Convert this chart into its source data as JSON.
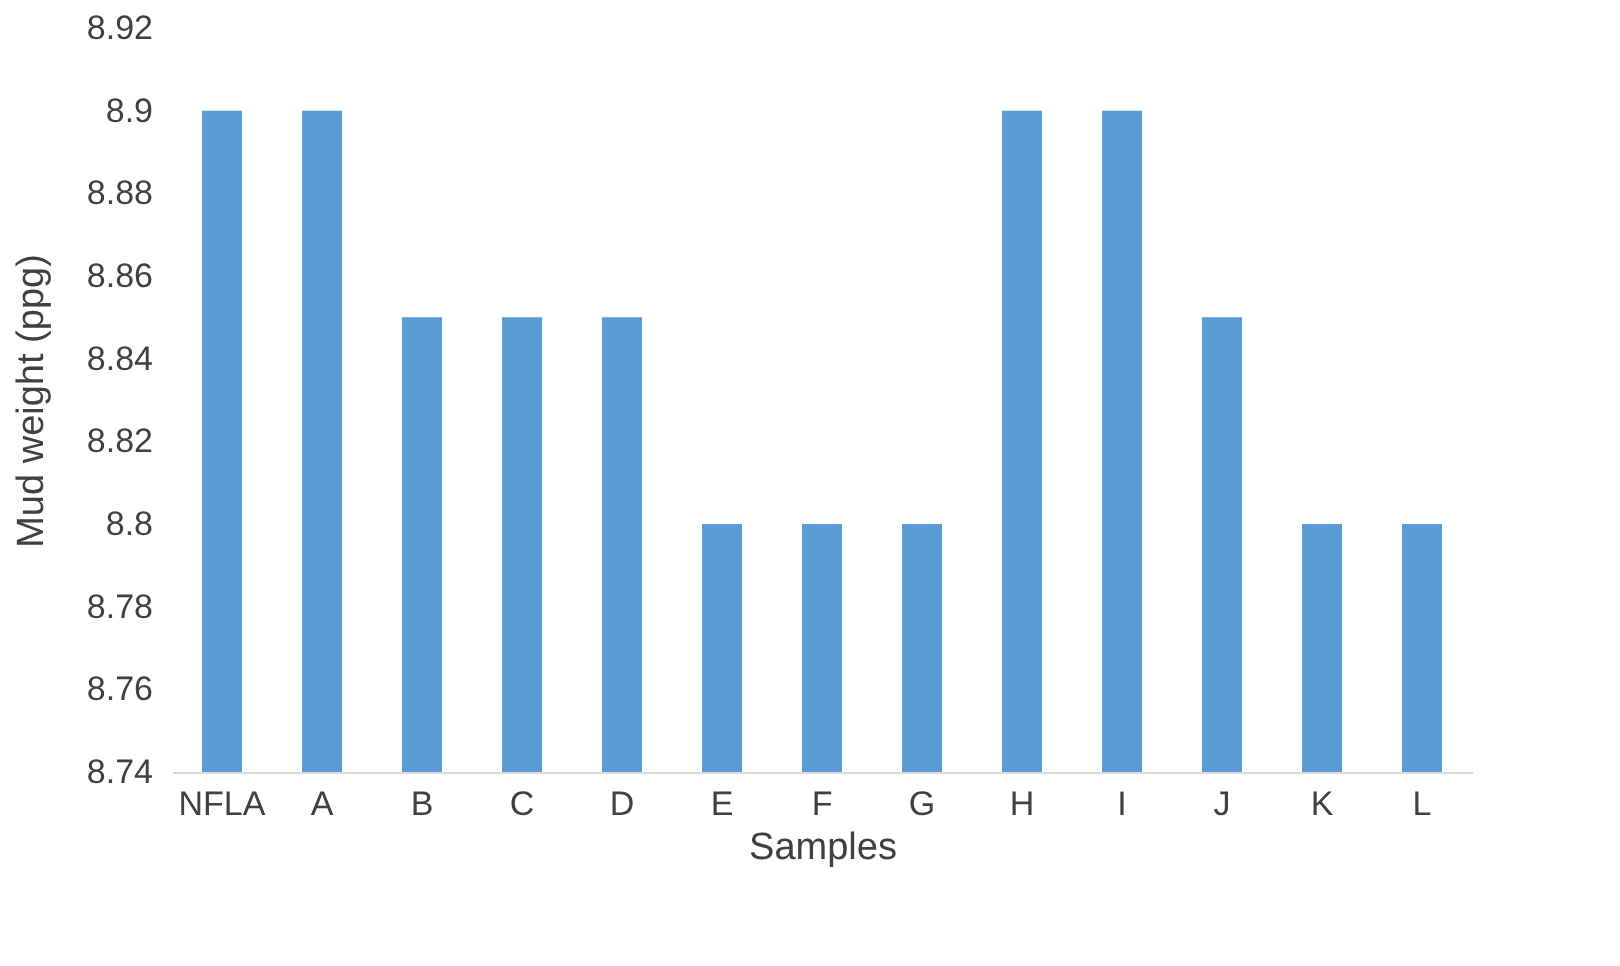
{
  "chart_data": {
    "type": "bar",
    "xlabel": "Samples",
    "ylabel": "Mud weight (ppg)",
    "categories": [
      "NFLA",
      "A",
      "B",
      "C",
      "D",
      "E",
      "F",
      "G",
      "H",
      "I",
      "J",
      "K",
      "L"
    ],
    "values": [
      8.9,
      8.9,
      8.85,
      8.85,
      8.85,
      8.8,
      8.8,
      8.8,
      8.9,
      8.9,
      8.85,
      8.8,
      8.8
    ],
    "color": "#5b9bd5",
    "ylim": [
      8.74,
      8.92
    ],
    "yticks": [
      8.74,
      8.76,
      8.78,
      8.8,
      8.82,
      8.84,
      8.86,
      8.88,
      8.9,
      8.92
    ],
    "grid": false
  }
}
